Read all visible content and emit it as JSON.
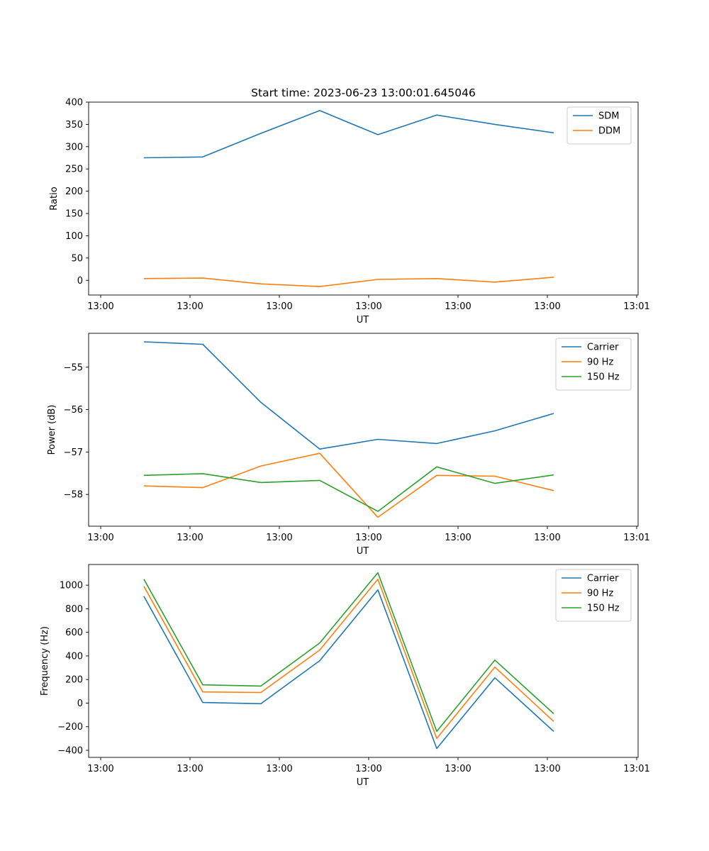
{
  "chart_data": [
    {
      "type": "line",
      "title": "Start time: 2023-06-23 13:00:01.645046",
      "xlabel": "UT",
      "ylabel": "Ratio",
      "x_tick_labels": [
        "13:00",
        "13:00",
        "13:00",
        "13:00",
        "13:00",
        "13:00",
        "13:01"
      ],
      "y_ticks": [
        0,
        50,
        100,
        150,
        200,
        250,
        300,
        350,
        400
      ],
      "ylim": [
        -33,
        400
      ],
      "legend_position": "top-right",
      "grid": false,
      "series": [
        {
          "name": "SDM",
          "color": "#1f77b4",
          "values": [
            275,
            277,
            330,
            381,
            327,
            371,
            350,
            331
          ]
        },
        {
          "name": "DDM",
          "color": "#ff7f0e",
          "values": [
            4,
            5,
            -8,
            -14,
            2,
            4,
            -4,
            7
          ]
        }
      ]
    },
    {
      "type": "line",
      "title": "",
      "xlabel": "UT",
      "ylabel": "Power (dB)",
      "x_tick_labels": [
        "13:00",
        "13:00",
        "13:00",
        "13:00",
        "13:00",
        "13:00",
        "13:01"
      ],
      "y_ticks": [
        -58,
        -57,
        -56,
        -55
      ],
      "y_tick_labels": [
        "−58",
        "−57",
        "−56",
        "−55"
      ],
      "ylim": [
        -58.75,
        -54.2
      ],
      "legend_position": "top-right",
      "grid": false,
      "series": [
        {
          "name": "Carrier",
          "color": "#1f77b4",
          "values": [
            -54.4,
            -54.46,
            -55.83,
            -56.93,
            -56.7,
            -56.8,
            -56.5,
            -56.09
          ]
        },
        {
          "name": "90 Hz",
          "color": "#ff7f0e",
          "values": [
            -57.8,
            -57.84,
            -57.33,
            -57.03,
            -58.54,
            -57.55,
            -57.57,
            -57.91
          ]
        },
        {
          "name": "150 Hz",
          "color": "#2ca02c",
          "values": [
            -57.55,
            -57.51,
            -57.72,
            -57.67,
            -58.4,
            -57.35,
            -57.74,
            -57.54
          ]
        }
      ]
    },
    {
      "type": "line",
      "title": "",
      "xlabel": "UT",
      "ylabel": "Frequency (Hz)",
      "x_tick_labels": [
        "13:00",
        "13:00",
        "13:00",
        "13:00",
        "13:00",
        "13:00",
        "13:01"
      ],
      "y_ticks": [
        -400,
        -200,
        0,
        200,
        400,
        600,
        800,
        1000
      ],
      "y_tick_labels": [
        "−400",
        "−200",
        "0",
        "200",
        "400",
        "600",
        "800",
        "1000"
      ],
      "ylim": [
        -460,
        1175
      ],
      "legend_position": "top-right",
      "grid": false,
      "series": [
        {
          "name": "Carrier",
          "color": "#1f77b4",
          "values": [
            905,
            5,
            -5,
            360,
            960,
            -385,
            215,
            -240
          ]
        },
        {
          "name": "90 Hz",
          "color": "#ff7f0e",
          "values": [
            990,
            95,
            90,
            450,
            1050,
            -300,
            305,
            -155
          ]
        },
        {
          "name": "150 Hz",
          "color": "#2ca02c",
          "values": [
            1050,
            155,
            145,
            510,
            1105,
            -240,
            365,
            -90
          ]
        }
      ]
    }
  ]
}
